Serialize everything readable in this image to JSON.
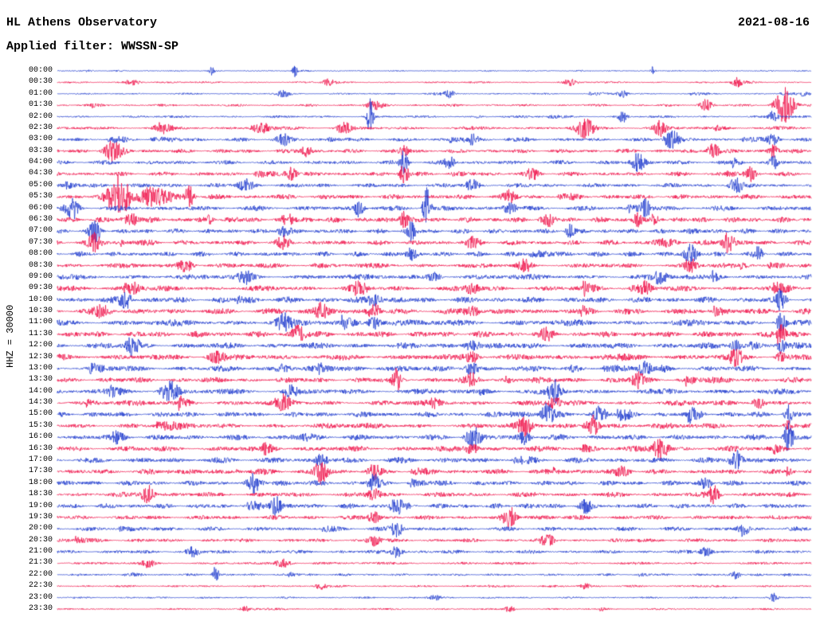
{
  "header": {
    "title": "HL Athens Observatory",
    "date": "2021-08-16",
    "filter_label": "Applied filter: WWSSN-SP"
  },
  "y_axis_label": "HHZ = 30000",
  "colors": {
    "red": "#ef1048",
    "blue": "#1f3bce",
    "background": "#ffffff",
    "text": "#000000"
  },
  "chart_data": {
    "type": "seismogram",
    "description": "24-hour helicorder plot, 48 half-hour traces with alternating blue/red colors. 'amp' is the relative background noise envelope (0-1); 'events' are bursts given as [position-fraction-of-trace, relative-amplitude, width-fraction].",
    "station_channel": "HHZ",
    "scale": "30000",
    "trace_interval_minutes": 30,
    "row_count": 48,
    "color_cycle": [
      "blue",
      "red"
    ],
    "rows": [
      {
        "time": "00:00",
        "color": "blue",
        "amp": 0.1,
        "events": [
          [
            0.205,
            0.45,
            0.003
          ],
          [
            0.315,
            0.5,
            0.003
          ],
          [
            0.79,
            0.45,
            0.003
          ]
        ]
      },
      {
        "time": "00:30",
        "color": "red",
        "amp": 0.14,
        "events": [
          [
            0.1,
            0.25,
            0.01
          ],
          [
            0.36,
            0.3,
            0.008
          ],
          [
            0.68,
            0.3,
            0.008
          ],
          [
            0.9,
            0.3,
            0.006
          ]
        ]
      },
      {
        "time": "01:00",
        "color": "blue",
        "amp": 0.13,
        "events": [
          [
            0.3,
            0.3,
            0.008
          ],
          [
            0.52,
            0.3,
            0.006
          ],
          [
            0.75,
            0.35,
            0.006
          ]
        ]
      },
      {
        "time": "01:30",
        "color": "red",
        "amp": 0.18,
        "events": [
          [
            0.42,
            0.4,
            0.01
          ],
          [
            0.86,
            0.5,
            0.008
          ],
          [
            0.965,
            1.6,
            0.012
          ]
        ]
      },
      {
        "time": "02:00",
        "color": "blue",
        "amp": 0.18,
        "events": [
          [
            0.415,
            1.7,
            0.004
          ],
          [
            0.75,
            0.5,
            0.006
          ],
          [
            0.95,
            0.5,
            0.006
          ]
        ]
      },
      {
        "time": "02:30",
        "color": "red",
        "amp": 0.26,
        "events": [
          [
            0.14,
            0.5,
            0.01
          ],
          [
            0.27,
            0.55,
            0.012
          ],
          [
            0.38,
            0.5,
            0.01
          ],
          [
            0.7,
            0.8,
            0.012
          ],
          [
            0.8,
            0.7,
            0.008
          ]
        ]
      },
      {
        "time": "03:00",
        "color": "blue",
        "amp": 0.28,
        "events": [
          [
            0.3,
            0.45,
            0.01
          ],
          [
            0.55,
            0.4,
            0.008
          ],
          [
            0.815,
            0.9,
            0.01
          ],
          [
            0.95,
            0.5,
            0.008
          ]
        ]
      },
      {
        "time": "03:30",
        "color": "red",
        "amp": 0.32,
        "events": [
          [
            0.075,
            0.9,
            0.012
          ],
          [
            0.33,
            0.5,
            0.008
          ],
          [
            0.46,
            0.5,
            0.006
          ],
          [
            0.87,
            0.7,
            0.008
          ],
          [
            0.95,
            0.6,
            0.006
          ]
        ]
      },
      {
        "time": "04:00",
        "color": "blue",
        "amp": 0.32,
        "events": [
          [
            0.46,
            1.1,
            0.005
          ],
          [
            0.52,
            0.6,
            0.006
          ],
          [
            0.77,
            0.8,
            0.008
          ],
          [
            0.95,
            0.6,
            0.005
          ]
        ]
      },
      {
        "time": "04:30",
        "color": "red",
        "amp": 0.33,
        "events": [
          [
            0.31,
            0.6,
            0.008
          ],
          [
            0.46,
            0.9,
            0.006
          ],
          [
            0.63,
            0.5,
            0.008
          ],
          [
            0.92,
            0.6,
            0.006
          ]
        ]
      },
      {
        "time": "05:00",
        "color": "blue",
        "amp": 0.33,
        "events": [
          [
            0.25,
            0.5,
            0.01
          ],
          [
            0.55,
            0.5,
            0.008
          ],
          [
            0.9,
            0.7,
            0.008
          ]
        ]
      },
      {
        "time": "05:30",
        "color": "red",
        "amp": 0.38,
        "events": [
          [
            0.082,
            2.0,
            0.014
          ],
          [
            0.13,
            0.9,
            0.02
          ],
          [
            0.175,
            1.0,
            0.006
          ],
          [
            0.6,
            0.5,
            0.008
          ]
        ]
      },
      {
        "time": "06:00",
        "color": "blue",
        "amp": 0.38,
        "events": [
          [
            0.02,
            0.9,
            0.008
          ],
          [
            0.4,
            0.8,
            0.006
          ],
          [
            0.49,
            1.9,
            0.005
          ],
          [
            0.6,
            0.5,
            0.008
          ],
          [
            0.78,
            0.8,
            0.006
          ]
        ]
      },
      {
        "time": "06:30",
        "color": "red",
        "amp": 0.42,
        "events": [
          [
            0.1,
            0.5,
            0.01
          ],
          [
            0.46,
            0.8,
            0.006
          ],
          [
            0.65,
            0.6,
            0.008
          ],
          [
            0.77,
            0.6,
            0.006
          ]
        ]
      },
      {
        "time": "07:00",
        "color": "blue",
        "amp": 0.38,
        "events": [
          [
            0.05,
            0.8,
            0.008
          ],
          [
            0.3,
            0.5,
            0.008
          ],
          [
            0.47,
            0.8,
            0.006
          ],
          [
            0.68,
            0.6,
            0.006
          ]
        ]
      },
      {
        "time": "07:30",
        "color": "red",
        "amp": 0.38,
        "events": [
          [
            0.05,
            0.9,
            0.008
          ],
          [
            0.3,
            0.5,
            0.008
          ],
          [
            0.55,
            0.4,
            0.01
          ],
          [
            0.89,
            0.95,
            0.008
          ]
        ]
      },
      {
        "time": "08:00",
        "color": "blue",
        "amp": 0.38,
        "events": [
          [
            0.47,
            0.6,
            0.006
          ],
          [
            0.84,
            0.85,
            0.008
          ],
          [
            0.93,
            0.6,
            0.005
          ]
        ]
      },
      {
        "time": "08:30",
        "color": "red",
        "amp": 0.38,
        "events": [
          [
            0.17,
            0.6,
            0.01
          ],
          [
            0.62,
            0.6,
            0.008
          ],
          [
            0.84,
            0.6,
            0.008
          ]
        ]
      },
      {
        "time": "09:00",
        "color": "blue",
        "amp": 0.42,
        "events": [
          [
            0.25,
            0.5,
            0.01
          ],
          [
            0.5,
            0.5,
            0.008
          ],
          [
            0.8,
            0.65,
            0.008
          ]
        ]
      },
      {
        "time": "09:30",
        "color": "red",
        "amp": 0.42,
        "events": [
          [
            0.1,
            0.5,
            0.01
          ],
          [
            0.4,
            0.5,
            0.01
          ],
          [
            0.55,
            0.5,
            0.008
          ],
          [
            0.78,
            0.5,
            0.008
          ]
        ]
      },
      {
        "time": "10:00",
        "color": "blue",
        "amp": 0.46,
        "events": [
          [
            0.09,
            0.85,
            0.008
          ],
          [
            0.42,
            0.6,
            0.01
          ],
          [
            0.96,
            0.85,
            0.006
          ]
        ]
      },
      {
        "time": "10:30",
        "color": "red",
        "amp": 0.46,
        "events": [
          [
            0.06,
            0.5,
            0.01
          ],
          [
            0.35,
            0.65,
            0.01
          ],
          [
            0.42,
            0.7,
            0.008
          ],
          [
            0.55,
            0.5,
            0.01
          ]
        ]
      },
      {
        "time": "11:00",
        "color": "blue",
        "amp": 0.5,
        "events": [
          [
            0.3,
            0.7,
            0.01
          ],
          [
            0.42,
            0.55,
            0.008
          ],
          [
            0.96,
            0.9,
            0.006
          ]
        ]
      },
      {
        "time": "11:30",
        "color": "red",
        "amp": 0.47,
        "events": [
          [
            0.32,
            0.7,
            0.01
          ],
          [
            0.65,
            0.5,
            0.008
          ],
          [
            0.96,
            0.6,
            0.006
          ]
        ]
      },
      {
        "time": "12:00",
        "color": "blue",
        "amp": 0.47,
        "events": [
          [
            0.1,
            0.9,
            0.008
          ],
          [
            0.55,
            0.5,
            0.01
          ],
          [
            0.9,
            0.5,
            0.008
          ],
          [
            0.96,
            0.6,
            0.005
          ]
        ]
      },
      {
        "time": "12:30",
        "color": "red",
        "amp": 0.47,
        "events": [
          [
            0.21,
            0.5,
            0.01
          ],
          [
            0.55,
            0.5,
            0.01
          ],
          [
            0.9,
            0.7,
            0.008
          ],
          [
            0.96,
            0.5,
            0.006
          ]
        ]
      },
      {
        "time": "13:00",
        "color": "blue",
        "amp": 0.43,
        "events": [
          [
            0.3,
            0.4,
            0.01
          ],
          [
            0.55,
            0.65,
            0.008
          ],
          [
            0.78,
            0.65,
            0.008
          ]
        ]
      },
      {
        "time": "13:30",
        "color": "red",
        "amp": 0.43,
        "events": [
          [
            0.45,
            0.95,
            0.005
          ],
          [
            0.55,
            0.5,
            0.008
          ],
          [
            0.77,
            0.65,
            0.008
          ]
        ]
      },
      {
        "time": "14:00",
        "color": "blue",
        "amp": 0.43,
        "events": [
          [
            0.15,
            0.9,
            0.01
          ],
          [
            0.31,
            0.5,
            0.008
          ],
          [
            0.66,
            1.05,
            0.008
          ]
        ]
      },
      {
        "time": "14:30",
        "color": "red",
        "amp": 0.43,
        "events": [
          [
            0.3,
            0.6,
            0.01
          ],
          [
            0.66,
            0.5,
            0.008
          ],
          [
            0.93,
            0.5,
            0.008
          ]
        ]
      },
      {
        "time": "15:00",
        "color": "blue",
        "amp": 0.43,
        "events": [
          [
            0.65,
            1.0,
            0.008
          ],
          [
            0.72,
            0.7,
            0.008
          ],
          [
            0.97,
            0.8,
            0.005
          ]
        ]
      },
      {
        "time": "15:30",
        "color": "red",
        "amp": 0.43,
        "events": [
          [
            0.62,
            0.85,
            0.008
          ],
          [
            0.71,
            0.95,
            0.008
          ],
          [
            0.97,
            0.5,
            0.006
          ]
        ]
      },
      {
        "time": "16:00",
        "color": "blue",
        "amp": 0.43,
        "events": [
          [
            0.55,
            0.85,
            0.008
          ],
          [
            0.62,
            0.6,
            0.008
          ],
          [
            0.97,
            1.4,
            0.006
          ]
        ]
      },
      {
        "time": "16:30",
        "color": "red",
        "amp": 0.43,
        "events": [
          [
            0.55,
            0.5,
            0.008
          ],
          [
            0.8,
            1.0,
            0.01
          ]
        ]
      },
      {
        "time": "17:00",
        "color": "blue",
        "amp": 0.43,
        "events": [
          [
            0.35,
            0.5,
            0.008
          ],
          [
            0.9,
            1.0,
            0.008
          ]
        ]
      },
      {
        "time": "17:30",
        "color": "red",
        "amp": 0.4,
        "events": [
          [
            0.35,
            1.05,
            0.008
          ],
          [
            0.42,
            0.6,
            0.008
          ],
          [
            0.75,
            0.4,
            0.01
          ]
        ]
      },
      {
        "time": "18:00",
        "color": "blue",
        "amp": 0.38,
        "events": [
          [
            0.26,
            0.75,
            0.008
          ],
          [
            0.42,
            0.7,
            0.008
          ],
          [
            0.86,
            0.5,
            0.008
          ]
        ]
      },
      {
        "time": "18:30",
        "color": "red",
        "amp": 0.38,
        "events": [
          [
            0.12,
            0.85,
            0.008
          ],
          [
            0.42,
            0.5,
            0.008
          ],
          [
            0.87,
            0.85,
            0.008
          ]
        ]
      },
      {
        "time": "19:00",
        "color": "blue",
        "amp": 0.38,
        "events": [
          [
            0.29,
            0.85,
            0.008
          ],
          [
            0.45,
            0.5,
            0.008
          ],
          [
            0.7,
            0.5,
            0.008
          ]
        ]
      },
      {
        "time": "19:30",
        "color": "red",
        "amp": 0.33,
        "events": [
          [
            0.42,
            0.5,
            0.008
          ],
          [
            0.6,
            0.95,
            0.008
          ]
        ]
      },
      {
        "time": "20:00",
        "color": "blue",
        "amp": 0.33,
        "events": [
          [
            0.45,
            0.7,
            0.008
          ],
          [
            0.91,
            0.8,
            0.006
          ]
        ]
      },
      {
        "time": "20:30",
        "color": "red",
        "amp": 0.28,
        "events": [
          [
            0.42,
            0.5,
            0.008
          ],
          [
            0.65,
            0.4,
            0.01
          ]
        ]
      },
      {
        "time": "21:00",
        "color": "blue",
        "amp": 0.28,
        "events": [
          [
            0.18,
            0.4,
            0.008
          ],
          [
            0.45,
            0.55,
            0.008
          ],
          [
            0.86,
            0.4,
            0.008
          ]
        ]
      },
      {
        "time": "21:30",
        "color": "red",
        "amp": 0.2,
        "events": [
          [
            0.12,
            0.4,
            0.008
          ],
          [
            0.3,
            0.35,
            0.01
          ]
        ]
      },
      {
        "time": "22:00",
        "color": "blue",
        "amp": 0.18,
        "events": [
          [
            0.21,
            0.8,
            0.004
          ],
          [
            0.9,
            0.4,
            0.006
          ]
        ]
      },
      {
        "time": "22:30",
        "color": "red",
        "amp": 0.16,
        "events": [
          [
            0.35,
            0.3,
            0.008
          ],
          [
            0.7,
            0.25,
            0.008
          ]
        ]
      },
      {
        "time": "23:00",
        "color": "blue",
        "amp": 0.14,
        "events": [
          [
            0.5,
            0.25,
            0.008
          ],
          [
            0.95,
            0.35,
            0.005
          ]
        ]
      },
      {
        "time": "23:30",
        "color": "red",
        "amp": 0.13,
        "events": [
          [
            0.25,
            0.25,
            0.008
          ],
          [
            0.6,
            0.25,
            0.008
          ]
        ]
      }
    ]
  }
}
